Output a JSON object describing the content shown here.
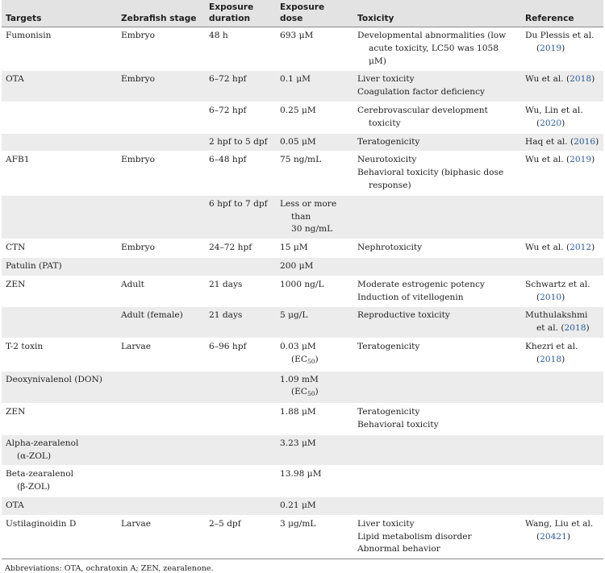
{
  "headers": {
    "targets": "Targets",
    "stage": "Zebrafish stage",
    "duration_1": "Exposure",
    "duration_2": "duration",
    "dose_1": "Exposure",
    "dose_2": "dose",
    "toxicity": "Toxicity",
    "reference": "Reference"
  },
  "rows": {
    "r1": {
      "target": "Fumonisin",
      "stage": "Embryo",
      "duration": "48 h",
      "dose": "693 μM",
      "tox1": "Developmental abnormalities (low",
      "tox2": "acute toxicity, LC50 was 1058 μM)",
      "ref1": "Du Plessis et al.",
      "ref2_open": "(",
      "ref2_year": "2019",
      "ref2_close": ")"
    },
    "r2": {
      "target": "OTA",
      "stage": "Embryo",
      "duration": "6–72 hpf",
      "dose": "0.1 μM",
      "tox1": "Liver toxicity",
      "tox2": "Coagulation factor deficiency",
      "ref_text": "Wu et al. (",
      "ref_year": "2018",
      "ref_close": ")"
    },
    "r3": {
      "duration": "6–72 hpf",
      "dose": "0.25 μM",
      "tox1": "Cerebrovascular development",
      "tox2": "toxicity",
      "ref1": "Wu, Lin et al.",
      "ref2_open": "(",
      "ref2_year": "2020",
      "ref2_close": ")"
    },
    "r4": {
      "duration": "2 hpf to 5 dpf",
      "dose": "0.05 μM",
      "tox1": "Teratogenicity",
      "ref_text": "Haq et al. (",
      "ref_year": "2016",
      "ref_close": ")"
    },
    "r5": {
      "target": "AFB1",
      "stage": "Embryo",
      "duration": "6–48 hpf",
      "dose": "75 ng/mL",
      "tox1": "Neurotoxicity",
      "tox2": "Behavioral toxicity (biphasic dose",
      "tox3": "response)",
      "ref_text": "Wu et al. (",
      "ref_year": "2019",
      "ref_close": ")"
    },
    "r6": {
      "duration": "6 hpf to 7 dpf",
      "dose1": "Less or more",
      "dose2": "than",
      "dose3": "30 ng/mL"
    },
    "r7": {
      "target": "CTN",
      "stage": "Embryo",
      "duration": "24–72 hpf",
      "dose": "15 μM",
      "tox1": "Nephrotoxicity",
      "ref_text": "Wu et al. (",
      "ref_year": "2012",
      "ref_close": ")"
    },
    "r8": {
      "target": "Patulin (PAT)",
      "dose": "200 μM"
    },
    "r9": {
      "target": "ZEN",
      "stage": "Adult",
      "duration": "21 days",
      "dose": "1000 ng/L",
      "tox1": "Moderate estrogenic potency",
      "tox2": "Induction of vitellogenin",
      "ref1": "Schwartz et al.",
      "ref2_open": "(",
      "ref2_year": "2010",
      "ref2_close": ")"
    },
    "r10": {
      "stage": "Adult (female)",
      "duration": "21 days",
      "dose": "5 μg/L",
      "tox1": "Reproductive toxicity",
      "ref1": "Muthulakshmi",
      "ref2_text": "et al. (",
      "ref2_year": "2018",
      "ref2_close": ")"
    },
    "r11": {
      "target": "T-2 toxin",
      "stage": "Larvae",
      "duration": "6–96 hpf",
      "dose1": "0.03 μM",
      "dose2_open": "(EC",
      "dose2_sub": "50",
      "dose2_close": ")",
      "tox1": "Teratogenicity",
      "ref1": "Khezri et al.",
      "ref2_open": "(",
      "ref2_year": "2018",
      "ref2_close": ")"
    },
    "r12": {
      "target": "Deoxynivalenol (DON)",
      "dose1": "1.09 mM",
      "dose2_open": "(EC",
      "dose2_sub": "50",
      "dose2_close": ")"
    },
    "r13": {
      "target": "ZEN",
      "dose": "1.88 μM",
      "tox1": "Teratogenicity",
      "tox2": "Behavioral toxicity"
    },
    "r14": {
      "target1": "Alpha-zearalenol",
      "target2": "(α-ZOL)",
      "dose": "3.23 μM"
    },
    "r15": {
      "target1": "Beta-zearalenol",
      "target2": "(β-ZOL)",
      "dose": "13.98 μM"
    },
    "r16": {
      "target": "OTA",
      "dose": "0.21 μM"
    },
    "r17": {
      "target": "Ustilaginoidin D",
      "stage": "Larvae",
      "duration": "2–5 dpf",
      "dose": "3 μg/mL",
      "tox1": "Liver toxicity",
      "tox2": "Lipid metabolism disorder",
      "tox3": "Abnormal behavior",
      "ref1": "Wang, Liu et al.",
      "ref2_open": "(",
      "ref2_year": "20421",
      "ref2_close": ")"
    }
  },
  "footnote": "Abbreviations: OTA, ochratoxin A; ZEN, zearalenone.",
  "colors": {
    "header_bg": "#e3e3e3",
    "shade_bg": "#ececec",
    "link": "#2a5a9a"
  }
}
